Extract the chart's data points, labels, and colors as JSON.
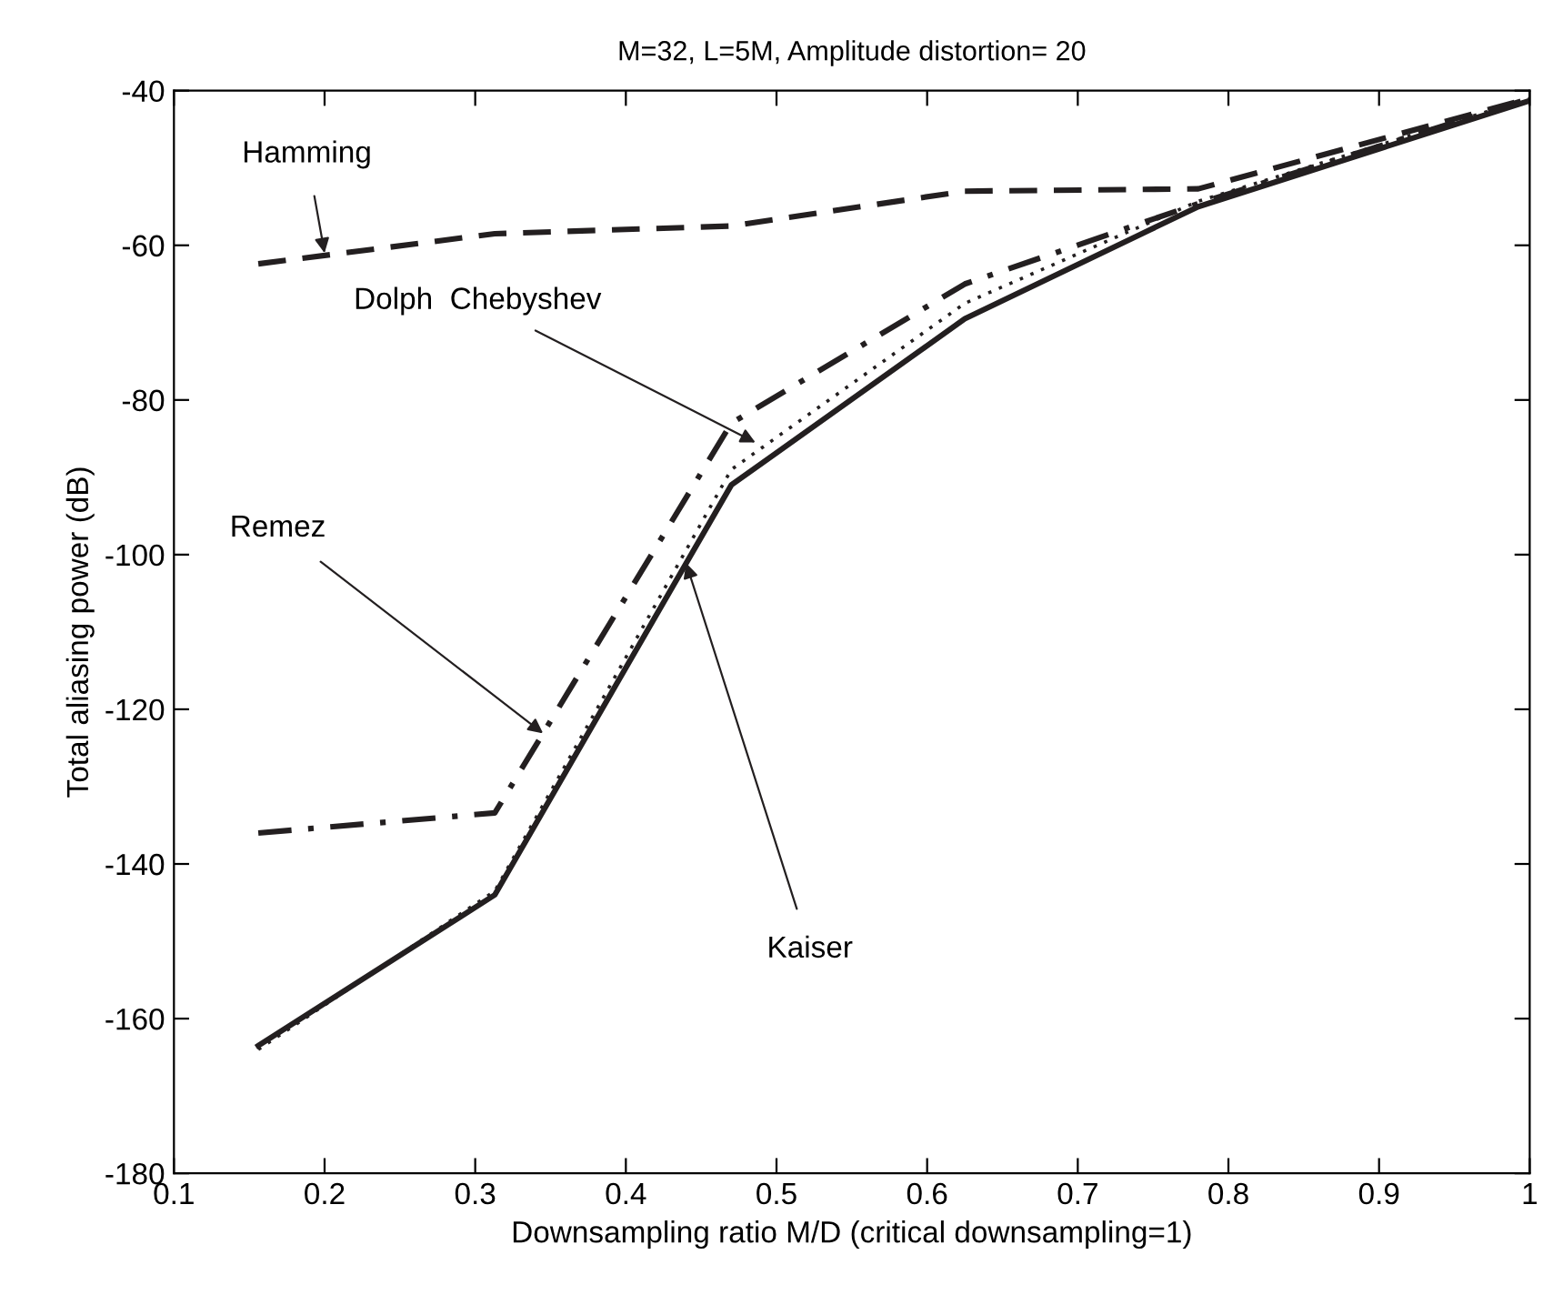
{
  "chart_data": {
    "type": "line",
    "title": "M=32, L=5M, Amplitude distortion= 20",
    "xlabel": "Downsampling ratio M/D (critical downsampling=1)",
    "ylabel": "Total aliasing power (dB)",
    "x": [
      0.156,
      0.313,
      0.47,
      0.625,
      0.78,
      1.0
    ],
    "series": [
      {
        "color": "#231f20",
        "line_style": "dashed",
        "values": [
          -62.4,
          -58.5,
          -57.5,
          -53,
          -52.7,
          -41
        ]
      },
      {
        "color": "#231f20",
        "line_style": "dotted",
        "values": [
          -164,
          -143.5,
          -89,
          -67.5,
          -54.3,
          -41
        ]
      },
      {
        "color": "#231f20",
        "line_style": "dashdot",
        "values": [
          -136,
          -133.4,
          -83,
          -65,
          -54.6,
          -41
        ]
      },
      {
        "color": "#231f20",
        "line_style": "solid",
        "values": [
          -163.5,
          -144,
          -91,
          -69.5,
          -55,
          -41.3
        ]
      }
    ],
    "xlim": [
      0.1,
      1.0
    ],
    "ylim": [
      -180,
      -40
    ],
    "xticks": [
      0.1,
      0.2,
      0.3,
      0.4,
      0.5,
      0.6,
      0.7,
      0.8,
      0.9,
      1
    ],
    "yticks": [
      -180,
      -160,
      -140,
      -120,
      -100,
      -80,
      -60,
      -40
    ],
    "grid": false,
    "legend": false,
    "marker": "none",
    "annotations": [
      {
        "text": "Hamming",
        "x": 0.2,
        "y": -61
      },
      {
        "text": "Dolph  Chebyshev",
        "x": 0.486,
        "y": -85.5
      },
      {
        "text": "Remez",
        "x": 0.345,
        "y": -123.1
      },
      {
        "text": "Kaiser",
        "x": 0.44,
        "y": -101.1
      }
    ]
  }
}
